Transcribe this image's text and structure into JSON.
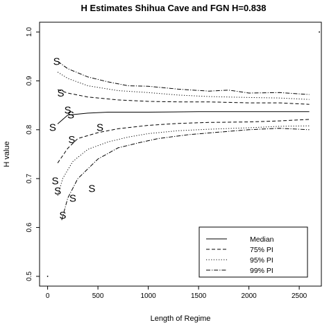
{
  "chart_data": {
    "type": "line",
    "title": "H Estimates Shihua Cave and FGN H=0.838",
    "xlabel": "Length of Regime",
    "ylabel": "H value",
    "xlim": [
      -80,
      2720
    ],
    "ylim": [
      0.48,
      1.02
    ],
    "xticks": [
      0,
      500,
      1000,
      1500,
      2000,
      2500
    ],
    "yticks": [
      0.5,
      0.6,
      0.7,
      0.8,
      0.9,
      1.0
    ],
    "grid": false,
    "legend_position": "bottom-right",
    "series": [
      {
        "name": "Median",
        "style": "solid",
        "x": [
          100,
          200,
          400,
          600,
          1000,
          1500,
          2000,
          2600
        ],
        "y": [
          0.812,
          0.83,
          0.834,
          0.836,
          0.836,
          0.837,
          0.837,
          0.837
        ]
      },
      {
        "name": "75% PI",
        "style": "dashed",
        "band": "upper",
        "x": [
          100,
          200,
          400,
          700,
          1000,
          1300,
          1600,
          2000,
          2300,
          2600
        ],
        "y": [
          0.882,
          0.875,
          0.867,
          0.861,
          0.858,
          0.857,
          0.857,
          0.855,
          0.855,
          0.852
        ]
      },
      {
        "name": "75% PI",
        "style": "dashed",
        "band": "lower",
        "x": [
          100,
          200,
          300,
          500,
          700,
          1000,
          1300,
          1600,
          2000,
          2300,
          2600
        ],
        "y": [
          0.732,
          0.762,
          0.782,
          0.794,
          0.802,
          0.809,
          0.813,
          0.815,
          0.816,
          0.818,
          0.821
        ]
      },
      {
        "name": "95% PI",
        "style": "dotted",
        "band": "upper",
        "x": [
          100,
          200,
          400,
          700,
          1000,
          1300,
          1600,
          2000,
          2300,
          2600
        ],
        "y": [
          0.918,
          0.905,
          0.89,
          0.88,
          0.876,
          0.871,
          0.868,
          0.866,
          0.865,
          0.862
        ]
      },
      {
        "name": "95% PI",
        "style": "dotted",
        "band": "lower",
        "x": [
          100,
          150,
          250,
          400,
          600,
          800,
          1000,
          1300,
          1600,
          2000,
          2300,
          2600
        ],
        "y": [
          0.665,
          0.7,
          0.735,
          0.76,
          0.775,
          0.785,
          0.792,
          0.798,
          0.801,
          0.804,
          0.807,
          0.808
        ]
      },
      {
        "name": "99% PI",
        "style": "dotdash",
        "band": "upper",
        "x": [
          100,
          200,
          400,
          600,
          800,
          1000,
          1300,
          1600,
          1800,
          2000,
          2300,
          2600
        ],
        "y": [
          0.94,
          0.925,
          0.908,
          0.898,
          0.89,
          0.889,
          0.883,
          0.879,
          0.881,
          0.875,
          0.876,
          0.872
        ]
      },
      {
        "name": "99% PI",
        "style": "dotdash",
        "band": "lower",
        "x": [
          140,
          200,
          300,
          500,
          700,
          900,
          1100,
          1400,
          1700,
          2000,
          2300,
          2600
        ],
        "y": [
          0.615,
          0.66,
          0.7,
          0.74,
          0.763,
          0.773,
          0.782,
          0.79,
          0.795,
          0.8,
          0.803,
          0.8
        ]
      }
    ],
    "points": {
      "symbol": "S",
      "x": [
        50,
        75,
        90,
        100,
        130,
        150,
        200,
        230,
        240,
        250,
        440,
        520
      ],
      "y": [
        0.805,
        0.695,
        0.94,
        0.675,
        0.875,
        0.625,
        0.84,
        0.83,
        0.78,
        0.66,
        0.68,
        0.805
      ]
    },
    "small_points": {
      "x": [
        0,
        2700
      ],
      "y": [
        0.5,
        1.0
      ]
    },
    "legend": [
      "Median",
      "75% PI",
      "95% PI",
      "99% PI"
    ]
  }
}
